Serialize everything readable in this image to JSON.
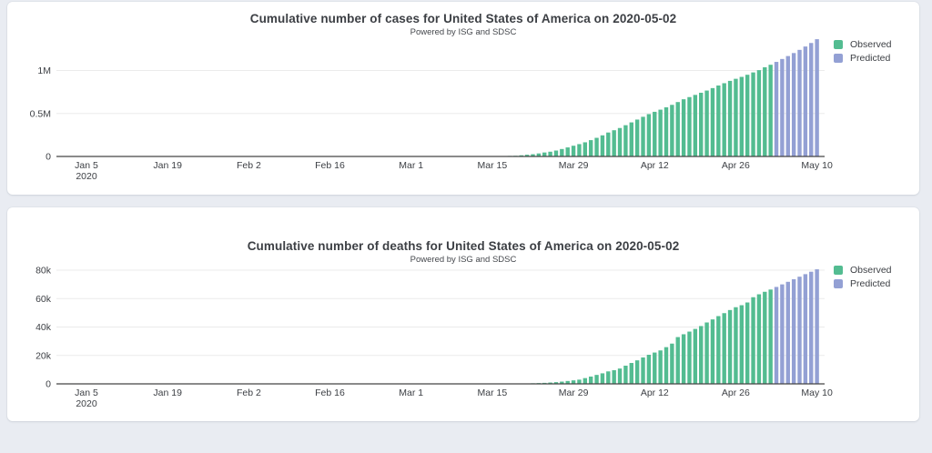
{
  "page": {
    "background_color": "#e9ecf2",
    "card_color": "#ffffff"
  },
  "chart_data": [
    {
      "type": "bar",
      "title": "Cumulative number of cases for United States of America on 2020-05-02",
      "subtitle": "Powered by ISG and SDSC",
      "xlabel": "",
      "ylabel": "",
      "grid": true,
      "legend_position": "right",
      "axis_start_date": "2020-01-05",
      "axis_end_date": "2020-05-10",
      "series_start_date": "2020-01-22",
      "x_tick_labels": [
        "Jan 5",
        "Jan 19",
        "Feb 2",
        "Feb 16",
        "Mar 1",
        "Mar 15",
        "Mar 29",
        "Apr 12",
        "Apr 26",
        "May 10"
      ],
      "x_tick_sub_label": "2020",
      "y_ticks": [
        {
          "label": "0",
          "value": 0
        },
        {
          "label": "0.5M",
          "value": 500000
        },
        {
          "label": "1M",
          "value": 1000000
        }
      ],
      "ylim": [
        0,
        1400000
      ],
      "series": [
        {
          "name": "Observed",
          "color": "#53bc91",
          "values": [
            1,
            1,
            2,
            2,
            5,
            5,
            5,
            5,
            6,
            7,
            8,
            8,
            11,
            11,
            11,
            11,
            11,
            11,
            11,
            11,
            12,
            12,
            13,
            13,
            13,
            13,
            13,
            13,
            13,
            13,
            15,
            15,
            15,
            15,
            15,
            15,
            16,
            16,
            24,
            30,
            53,
            73,
            104,
            172,
            217,
            262,
            402,
            518,
            583,
            959,
            1281,
            1663,
            2179,
            2727,
            3499,
            4632,
            6421,
            7783,
            13677,
            20030,
            26025,
            34898,
            46136,
            55231,
            68773,
            86613,
            105292,
            124788,
            143491,
            164620,
            189753,
            216721,
            245601,
            278458,
            304826,
            330891,
            363644,
            396223,
            429052,
            461437,
            492416,
            519453,
            544242,
            571694,
            600337,
            632781,
            665330,
            690714,
            716105,
            741214,
            766664,
            795185,
            825306,
            852191,
            879341,
            903416,
            925758,
            950283,
            977568,
            1003974,
            1037707,
            1066676
          ]
        },
        {
          "name": "Predicted",
          "color": "#93a0d4",
          "values": [
            1100000,
            1134000,
            1168000,
            1203000,
            1240000,
            1279000,
            1320000,
            1364000
          ]
        }
      ]
    },
    {
      "type": "bar",
      "title": "Cumulative number of deaths for United States of America on 2020-05-02",
      "subtitle": "Powered by ISG and SDSC",
      "xlabel": "",
      "ylabel": "",
      "grid": true,
      "legend_position": "right",
      "axis_start_date": "2020-01-05",
      "axis_end_date": "2020-05-10",
      "series_start_date": "2020-01-22",
      "x_tick_labels": [
        "Jan 5",
        "Jan 19",
        "Feb 2",
        "Feb 16",
        "Mar 1",
        "Mar 15",
        "Mar 29",
        "Apr 12",
        "Apr 26",
        "May 10"
      ],
      "x_tick_sub_label": "2020",
      "y_ticks": [
        {
          "label": "0",
          "value": 0
        },
        {
          "label": "20k",
          "value": 20000
        },
        {
          "label": "40k",
          "value": 40000
        },
        {
          "label": "60k",
          "value": 60000
        },
        {
          "label": "80k",
          "value": 80000
        }
      ],
      "ylim": [
        0,
        84000
      ],
      "series": [
        {
          "name": "Observed",
          "color": "#53bc91",
          "values": [
            0,
            0,
            0,
            0,
            0,
            0,
            0,
            0,
            0,
            0,
            0,
            0,
            0,
            0,
            0,
            0,
            0,
            0,
            0,
            0,
            0,
            0,
            0,
            0,
            0,
            0,
            0,
            0,
            0,
            0,
            0,
            0,
            0,
            0,
            0,
            0,
            0,
            0,
            1,
            1,
            6,
            7,
            11,
            12,
            14,
            17,
            21,
            22,
            28,
            36,
            40,
            47,
            54,
            63,
            85,
            108,
            118,
            200,
            244,
            307,
            417,
            557,
            706,
            942,
            1209,
            1581,
            2026,
            2467,
            2978,
            4054,
            5138,
            6298,
            7418,
            8772,
            9619,
            10783,
            12798,
            14704,
            16553,
            18595,
            20471,
            22032,
            23529,
            25832,
            28326,
            32916,
            34905,
            36773,
            38664,
            40680,
            43200,
            45343,
            47681,
            49759,
            51949,
            53934,
            55337,
            57266,
            60967,
            63019,
            64789,
            66369
          ]
        },
        {
          "name": "Predicted",
          "color": "#93a0d4",
          "values": [
            68200,
            70000,
            71800,
            73600,
            75400,
            77200,
            78900,
            80600
          ]
        }
      ]
    }
  ]
}
